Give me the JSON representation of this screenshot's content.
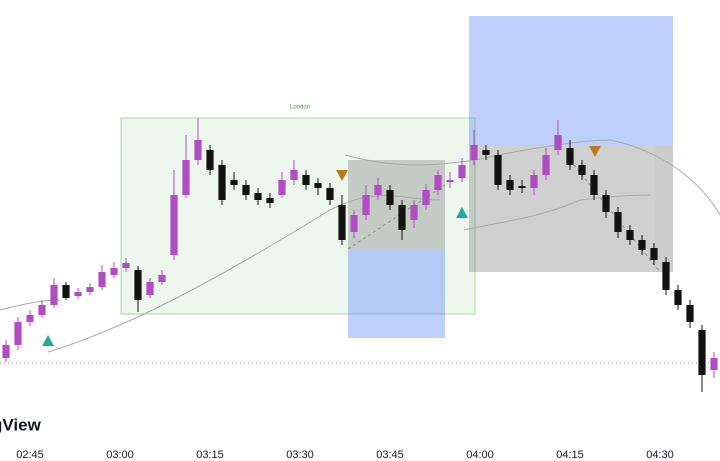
{
  "chart_data": {
    "type": "candlestick",
    "session_label": "London",
    "watermark": "gView",
    "up_color": "#b04cc4",
    "down_color": "#111111",
    "xlim": [
      0,
      60
    ],
    "ylim": [
      0,
      461
    ],
    "xticks": [
      {
        "value": 2.5,
        "label": "02:45"
      },
      {
        "value": 10,
        "label": "03:00"
      },
      {
        "value": 17.5,
        "label": "03:15"
      },
      {
        "value": 25,
        "label": "03:30"
      },
      {
        "value": 32.5,
        "label": "03:45"
      },
      {
        "value": 40,
        "label": "04:00"
      },
      {
        "value": 47.5,
        "label": "04:15"
      },
      {
        "value": 55,
        "label": "04:30"
      }
    ],
    "candles": {
      "open": [
        103,
        116,
        139,
        146,
        156,
        176,
        165,
        169,
        174,
        186,
        193,
        191,
        166,
        179,
        206,
        266,
        301,
        311,
        296,
        281,
        276,
        268,
        263,
        266,
        281,
        286,
        278,
        273,
        256,
        229,
        246,
        266,
        271,
        256,
        241,
        256,
        271,
        279,
        283,
        301,
        311,
        306,
        281,
        275,
        273,
        286,
        311,
        313,
        296,
        286,
        266,
        249,
        231,
        221,
        213,
        199,
        171,
        156,
        131,
        91
      ],
      "high": [
        121,
        144,
        151,
        161,
        183,
        179,
        173,
        178,
        196,
        199,
        203,
        195,
        183,
        191,
        291,
        326,
        343,
        316,
        301,
        289,
        281,
        273,
        268,
        289,
        301,
        291,
        283,
        278,
        266,
        251,
        276,
        283,
        276,
        261,
        261,
        277,
        291,
        289,
        303,
        331,
        316,
        311,
        286,
        281,
        291,
        313,
        341,
        321,
        301,
        291,
        271,
        254,
        236,
        226,
        218,
        204,
        176,
        161,
        136,
        109
      ],
      "low": [
        99,
        111,
        135,
        143,
        153,
        161,
        162,
        166,
        171,
        183,
        189,
        149,
        163,
        176,
        201,
        263,
        296,
        286,
        256,
        271,
        261,
        256,
        253,
        263,
        276,
        271,
        266,
        256,
        216,
        223,
        241,
        261,
        251,
        221,
        233,
        251,
        266,
        273,
        279,
        296,
        301,
        271,
        266,
        268,
        266,
        281,
        306,
        291,
        281,
        261,
        243,
        223,
        216,
        206,
        196,
        166,
        151,
        133,
        69,
        83
      ],
      "close": [
        116,
        139,
        146,
        156,
        176,
        163,
        169,
        174,
        189,
        193,
        198,
        161,
        179,
        186,
        266,
        301,
        321,
        291,
        261,
        276,
        266,
        261,
        258,
        281,
        291,
        276,
        273,
        261,
        221,
        246,
        266,
        276,
        256,
        231,
        256,
        271,
        286,
        281,
        296,
        316,
        306,
        276,
        271,
        273,
        286,
        306,
        326,
        296,
        286,
        266,
        249,
        229,
        221,
        211,
        201,
        171,
        156,
        139,
        86,
        103
      ]
    }
  }
}
